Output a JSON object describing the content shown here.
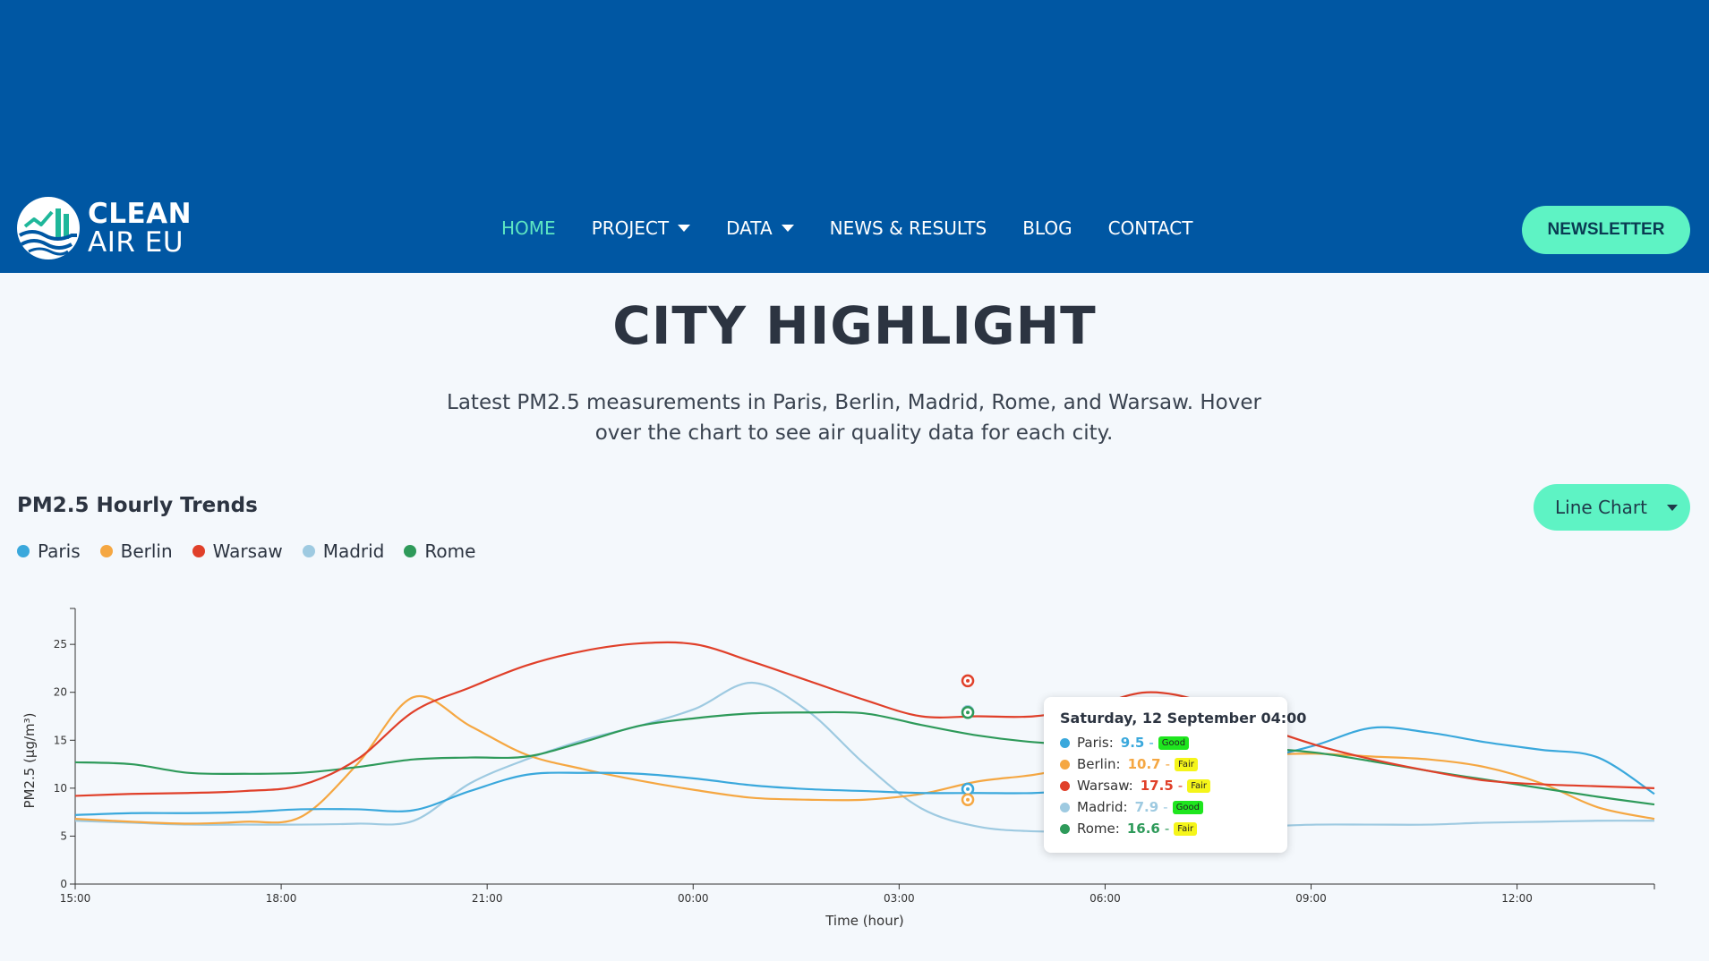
{
  "brand": {
    "line1": "CLEAN",
    "line2": "AIR EU"
  },
  "nav": {
    "items": [
      {
        "label": "HOME",
        "active": true,
        "dropdown": false
      },
      {
        "label": "PROJECT",
        "active": false,
        "dropdown": true
      },
      {
        "label": "DATA",
        "active": false,
        "dropdown": true
      },
      {
        "label": "NEWS & RESULTS",
        "active": false,
        "dropdown": false
      },
      {
        "label": "BLOG",
        "active": false,
        "dropdown": false
      },
      {
        "label": "CONTACT",
        "active": false,
        "dropdown": false
      }
    ],
    "newsletter_label": "NEWSLETTER"
  },
  "page": {
    "title": "CITY HIGHLIGHT",
    "description": "Latest PM2.5 measurements in Paris, Berlin, Madrid, Rome, and Warsaw. Hover over the chart to see air quality data for each city."
  },
  "colors": {
    "brand_blue": "#0057a3",
    "accent": "#5ef3c4",
    "badge_good": "#1ee61e",
    "badge_fair": "#f5f51a"
  },
  "chart_data": {
    "type": "line",
    "title": "PM2.5 Hourly Trends",
    "chart_type_selector": "Line Chart",
    "xlabel": "Time (hour)",
    "ylabel": "PM2.5 (µg/m³)",
    "ylim": [
      0,
      28
    ],
    "y_ticks": [
      0,
      5,
      10,
      15,
      20,
      25
    ],
    "x_ticks": [
      "15:00",
      "18:00",
      "21:00",
      "00:00",
      "03:00",
      "06:00",
      "09:00",
      "12:00"
    ],
    "x_start_hour": 15,
    "x_hours_span": 23,
    "series": [
      {
        "name": "Paris",
        "color": "#3aa8dc",
        "values": [
          7.2,
          7.4,
          7.4,
          7.5,
          7.8,
          7.8,
          7.7,
          9.7,
          11.4,
          11.6,
          11.5,
          11.0,
          10.3,
          9.9,
          9.7,
          9.5,
          9.5,
          9.5,
          9.9,
          10.4,
          11.5,
          13.0,
          14.5,
          16.3,
          15.8,
          14.8,
          14.0,
          13.2,
          9.4
        ]
      },
      {
        "name": "Berlin",
        "color": "#f5a742",
        "values": [
          6.8,
          6.5,
          6.3,
          6.5,
          7.0,
          12.5,
          19.5,
          16.5,
          13.5,
          12.0,
          10.8,
          9.8,
          9.0,
          8.8,
          8.8,
          9.4,
          10.7,
          11.4,
          12.5,
          13.0,
          13.4,
          13.5,
          13.6,
          13.3,
          13.0,
          12.2,
          10.5,
          8.0,
          6.8
        ]
      },
      {
        "name": "Warsaw",
        "color": "#e0402a",
        "values": [
          9.2,
          9.4,
          9.5,
          9.7,
          10.3,
          13.0,
          18.0,
          20.5,
          22.8,
          24.3,
          25.1,
          25.0,
          23.2,
          21.2,
          19.2,
          17.5,
          17.5,
          17.5,
          18.5,
          20.0,
          19.0,
          16.5,
          14.5,
          13.0,
          11.8,
          10.8,
          10.4,
          10.2,
          10.0
        ]
      },
      {
        "name": "Madrid",
        "color": "#9ecae1",
        "values": [
          6.6,
          6.4,
          6.2,
          6.2,
          6.2,
          6.3,
          6.6,
          10.5,
          13.0,
          15.0,
          16.5,
          18.3,
          21.0,
          18.0,
          12.5,
          7.9,
          6.0,
          5.5,
          5.5,
          5.6,
          5.8,
          6.0,
          6.2,
          6.2,
          6.2,
          6.4,
          6.5,
          6.6,
          6.6
        ]
      },
      {
        "name": "Rome",
        "color": "#2e9a5a",
        "values": [
          12.7,
          12.5,
          11.6,
          11.5,
          11.6,
          12.2,
          13.0,
          13.2,
          13.3,
          14.8,
          16.5,
          17.3,
          17.8,
          17.9,
          17.8,
          16.6,
          15.5,
          14.8,
          14.5,
          14.5,
          14.5,
          14.2,
          13.7,
          12.8,
          11.8,
          10.9,
          10.0,
          9.1,
          8.3
        ]
      }
    ],
    "hover": {
      "hour_index": 13,
      "title": "Saturday, 12 September 04:00",
      "rows": [
        {
          "city": "Paris",
          "value": "9.5",
          "quality": "Good"
        },
        {
          "city": "Berlin",
          "value": "10.7",
          "quality": "Fair"
        },
        {
          "city": "Warsaw",
          "value": "17.5",
          "quality": "Fair"
        },
        {
          "city": "Madrid",
          "value": "7.9",
          "quality": "Good"
        },
        {
          "city": "Rome",
          "value": "16.6",
          "quality": "Fair"
        }
      ]
    }
  }
}
